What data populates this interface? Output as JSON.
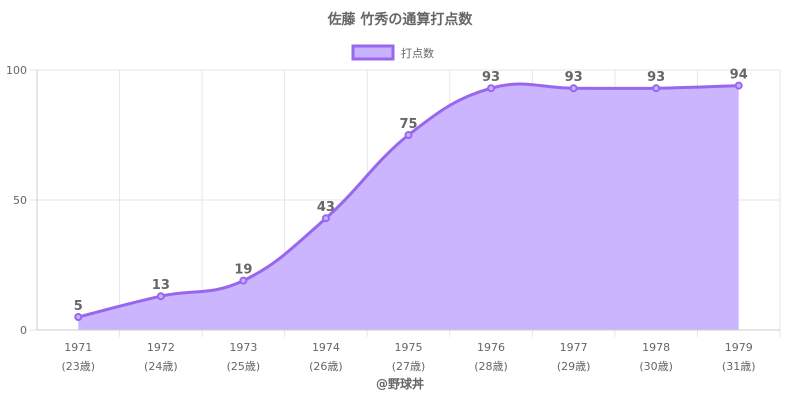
{
  "chart_data": {
    "type": "area",
    "title": "佐藤 竹秀の通算打点数",
    "legend": {
      "label": "打点数",
      "position": "top"
    },
    "categories": [
      "1971",
      "1972",
      "1973",
      "1974",
      "1975",
      "1976",
      "1977",
      "1978",
      "1979"
    ],
    "sublabels": [
      "(23歳)",
      "(24歳)",
      "(25歳)",
      "(26歳)",
      "(27歳)",
      "(28歳)",
      "(29歳)",
      "(30歳)",
      "(31歳)"
    ],
    "series": [
      {
        "name": "打点数",
        "values": [
          5,
          13,
          19,
          43,
          75,
          93,
          93,
          93,
          94
        ]
      }
    ],
    "ylim": [
      0,
      100
    ],
    "yticks": [
      0,
      50,
      100
    ],
    "grid": true,
    "colors": {
      "line": "#9966ee",
      "fill": "#c8b1ff",
      "grid": "#e6e6e6",
      "axis": "#cccccc"
    }
  },
  "footer": {
    "credit": "@野球丼"
  }
}
